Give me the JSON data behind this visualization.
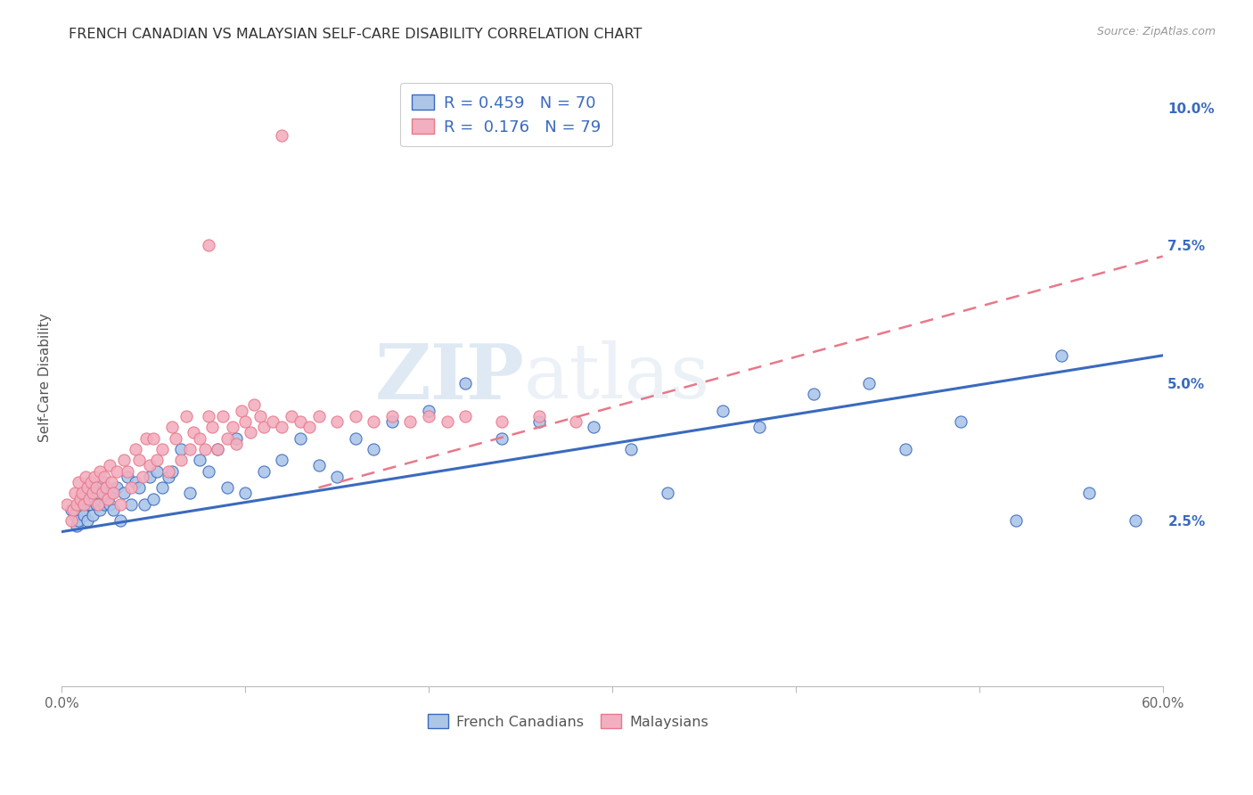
{
  "title": "FRENCH CANADIAN VS MALAYSIAN SELF-CARE DISABILITY CORRELATION CHART",
  "source": "Source: ZipAtlas.com",
  "ylabel": "Self-Care Disability",
  "xlim": [
    0.0,
    0.6
  ],
  "ylim": [
    -0.005,
    0.107
  ],
  "yticks_right": [
    0.025,
    0.05,
    0.075,
    0.1
  ],
  "ytick_labels_right": [
    "2.5%",
    "5.0%",
    "7.5%",
    "10.0%"
  ],
  "blue_R": 0.459,
  "blue_N": 70,
  "pink_R": 0.176,
  "pink_N": 79,
  "blue_color": "#adc6e8",
  "pink_color": "#f2afc0",
  "blue_line_color": "#3a6abf",
  "pink_line_color": "#e8788a",
  "legend_text_color": "#3a6abf",
  "watermark_zip": "ZIP",
  "watermark_atlas": "atlas",
  "background_color": "#ffffff",
  "grid_color": "#d8d8d8",
  "blue_line_start_y": 0.023,
  "blue_line_end_y": 0.055,
  "pink_line_start_x": 0.14,
  "pink_line_start_y": 0.031,
  "pink_line_end_x": 0.6,
  "pink_line_end_y": 0.073,
  "blue_x": [
    0.005,
    0.007,
    0.008,
    0.009,
    0.01,
    0.011,
    0.012,
    0.013,
    0.014,
    0.015,
    0.016,
    0.017,
    0.018,
    0.019,
    0.02,
    0.021,
    0.022,
    0.023,
    0.024,
    0.025,
    0.026,
    0.027,
    0.028,
    0.03,
    0.032,
    0.034,
    0.036,
    0.038,
    0.04,
    0.042,
    0.045,
    0.048,
    0.05,
    0.052,
    0.055,
    0.058,
    0.06,
    0.065,
    0.07,
    0.075,
    0.08,
    0.085,
    0.09,
    0.095,
    0.1,
    0.11,
    0.12,
    0.13,
    0.14,
    0.15,
    0.16,
    0.17,
    0.18,
    0.2,
    0.22,
    0.24,
    0.26,
    0.29,
    0.31,
    0.33,
    0.36,
    0.38,
    0.41,
    0.44,
    0.46,
    0.49,
    0.52,
    0.545,
    0.56,
    0.585
  ],
  "blue_y": [
    0.027,
    0.026,
    0.024,
    0.025,
    0.028,
    0.027,
    0.026,
    0.03,
    0.025,
    0.029,
    0.028,
    0.026,
    0.029,
    0.028,
    0.03,
    0.027,
    0.032,
    0.028,
    0.031,
    0.029,
    0.028,
    0.03,
    0.027,
    0.031,
    0.025,
    0.03,
    0.033,
    0.028,
    0.032,
    0.031,
    0.028,
    0.033,
    0.029,
    0.034,
    0.031,
    0.033,
    0.034,
    0.038,
    0.03,
    0.036,
    0.034,
    0.038,
    0.031,
    0.04,
    0.03,
    0.034,
    0.036,
    0.04,
    0.035,
    0.033,
    0.04,
    0.038,
    0.043,
    0.045,
    0.05,
    0.04,
    0.043,
    0.042,
    0.038,
    0.03,
    0.045,
    0.042,
    0.048,
    0.05,
    0.038,
    0.043,
    0.025,
    0.055,
    0.03,
    0.025
  ],
  "pink_x": [
    0.003,
    0.005,
    0.006,
    0.007,
    0.008,
    0.009,
    0.01,
    0.011,
    0.012,
    0.013,
    0.014,
    0.015,
    0.016,
    0.017,
    0.018,
    0.019,
    0.02,
    0.021,
    0.022,
    0.023,
    0.024,
    0.025,
    0.026,
    0.027,
    0.028,
    0.03,
    0.032,
    0.034,
    0.036,
    0.038,
    0.04,
    0.042,
    0.044,
    0.046,
    0.048,
    0.05,
    0.052,
    0.055,
    0.058,
    0.06,
    0.062,
    0.065,
    0.068,
    0.07,
    0.072,
    0.075,
    0.078,
    0.08,
    0.082,
    0.085,
    0.088,
    0.09,
    0.093,
    0.095,
    0.098,
    0.1,
    0.103,
    0.105,
    0.108,
    0.11,
    0.115,
    0.12,
    0.125,
    0.13,
    0.135,
    0.14,
    0.15,
    0.16,
    0.17,
    0.18,
    0.19,
    0.2,
    0.21,
    0.22,
    0.24,
    0.26,
    0.28,
    0.12,
    0.08
  ],
  "pink_y": [
    0.028,
    0.025,
    0.027,
    0.03,
    0.028,
    0.032,
    0.029,
    0.03,
    0.028,
    0.033,
    0.031,
    0.029,
    0.032,
    0.03,
    0.033,
    0.031,
    0.028,
    0.034,
    0.03,
    0.033,
    0.031,
    0.029,
    0.035,
    0.032,
    0.03,
    0.034,
    0.028,
    0.036,
    0.034,
    0.031,
    0.038,
    0.036,
    0.033,
    0.04,
    0.035,
    0.04,
    0.036,
    0.038,
    0.034,
    0.042,
    0.04,
    0.036,
    0.044,
    0.038,
    0.041,
    0.04,
    0.038,
    0.044,
    0.042,
    0.038,
    0.044,
    0.04,
    0.042,
    0.039,
    0.045,
    0.043,
    0.041,
    0.046,
    0.044,
    0.042,
    0.043,
    0.042,
    0.044,
    0.043,
    0.042,
    0.044,
    0.043,
    0.044,
    0.043,
    0.044,
    0.043,
    0.044,
    0.043,
    0.044,
    0.043,
    0.044,
    0.043,
    0.095,
    0.075
  ]
}
